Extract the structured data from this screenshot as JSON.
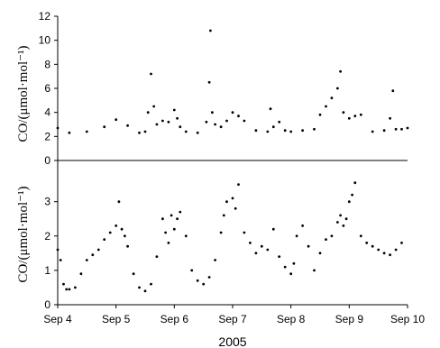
{
  "chart_data": [
    {
      "type": "scatter",
      "panel": "top",
      "ylabel": "CO/(μmol·mol⁻¹)",
      "ylim": [
        0,
        12
      ],
      "yticks": [
        "0",
        "2",
        "4",
        "6",
        "8",
        "10",
        "12"
      ],
      "series": [
        {
          "x": [
            4.0,
            4.2,
            4.5,
            4.8,
            5.0,
            5.2,
            5.4,
            5.5,
            5.55,
            5.6,
            5.65,
            5.7,
            5.8,
            5.9,
            6.0,
            6.05,
            6.1,
            6.2,
            6.4,
            6.55,
            6.6,
            6.62,
            6.65,
            6.7,
            6.8,
            6.9,
            7.0,
            7.1,
            7.2,
            7.4,
            7.6,
            7.65,
            7.7,
            7.8,
            7.9,
            8.0,
            8.2,
            8.4,
            8.5,
            8.6,
            8.7,
            8.8,
            8.85,
            8.9,
            9.0,
            9.1,
            9.2,
            9.4,
            9.6,
            9.7,
            9.75,
            9.8,
            9.9,
            10.0
          ],
          "y": [
            2.7,
            2.3,
            2.4,
            2.8,
            3.4,
            2.9,
            2.3,
            2.4,
            4.0,
            7.2,
            4.5,
            3.0,
            3.3,
            3.2,
            4.2,
            3.5,
            2.8,
            2.4,
            2.3,
            3.2,
            6.5,
            10.8,
            4.0,
            3.0,
            2.8,
            3.3,
            4.0,
            3.7,
            3.3,
            2.5,
            2.4,
            4.3,
            2.8,
            3.2,
            2.5,
            2.4,
            2.5,
            2.6,
            3.8,
            4.5,
            5.2,
            6.0,
            7.4,
            4.0,
            3.5,
            3.7,
            3.8,
            2.4,
            2.5,
            3.5,
            5.8,
            2.6,
            2.6,
            2.7
          ]
        }
      ]
    },
    {
      "type": "scatter",
      "panel": "bottom",
      "ylabel": "CO/(μmol·mol⁻¹)",
      "xlabel": "2005",
      "ylim": [
        0,
        3.7
      ],
      "yticks": [
        "0",
        "1",
        "2",
        "3"
      ],
      "xlim": [
        4,
        10
      ],
      "xticks": [
        "Sep 4",
        "Sep 5",
        "Sep 6",
        "Sep 7",
        "Sep 8",
        "Sep 9",
        "Sep 10"
      ],
      "series": [
        {
          "x": [
            4.0,
            4.05,
            4.1,
            4.15,
            4.2,
            4.3,
            4.4,
            4.5,
            4.6,
            4.7,
            4.8,
            4.9,
            5.0,
            5.05,
            5.1,
            5.15,
            5.2,
            5.3,
            5.4,
            5.5,
            5.6,
            5.7,
            5.8,
            5.85,
            5.9,
            5.95,
            6.0,
            6.05,
            6.1,
            6.2,
            6.3,
            6.4,
            6.5,
            6.6,
            6.7,
            6.8,
            6.85,
            6.9,
            7.0,
            7.05,
            7.1,
            7.2,
            7.3,
            7.4,
            7.5,
            7.6,
            7.7,
            7.8,
            7.9,
            8.0,
            8.05,
            8.1,
            8.2,
            8.3,
            8.4,
            8.5,
            8.6,
            8.7,
            8.8,
            8.85,
            8.9,
            8.95,
            9.0,
            9.05,
            9.1,
            9.2,
            9.3,
            9.4,
            9.5,
            9.6,
            9.7,
            9.8,
            9.9
          ],
          "y": [
            1.6,
            1.3,
            0.6,
            0.45,
            0.45,
            0.5,
            0.9,
            1.3,
            1.45,
            1.6,
            1.9,
            2.1,
            2.3,
            3.0,
            2.2,
            2.0,
            1.7,
            0.9,
            0.5,
            0.4,
            0.6,
            1.4,
            2.5,
            2.1,
            1.8,
            2.6,
            2.2,
            2.5,
            2.7,
            2.0,
            1.0,
            0.7,
            0.6,
            0.8,
            1.3,
            2.1,
            2.6,
            3.0,
            3.1,
            2.8,
            3.5,
            2.1,
            1.8,
            1.5,
            1.7,
            1.6,
            2.2,
            1.4,
            1.1,
            0.9,
            1.2,
            2.0,
            2.3,
            1.7,
            1.0,
            1.5,
            1.9,
            2.0,
            2.4,
            2.6,
            2.3,
            2.5,
            3.0,
            3.2,
            3.55,
            2.0,
            1.8,
            1.7,
            1.6,
            1.5,
            1.45,
            1.6,
            1.8
          ]
        }
      ]
    }
  ]
}
